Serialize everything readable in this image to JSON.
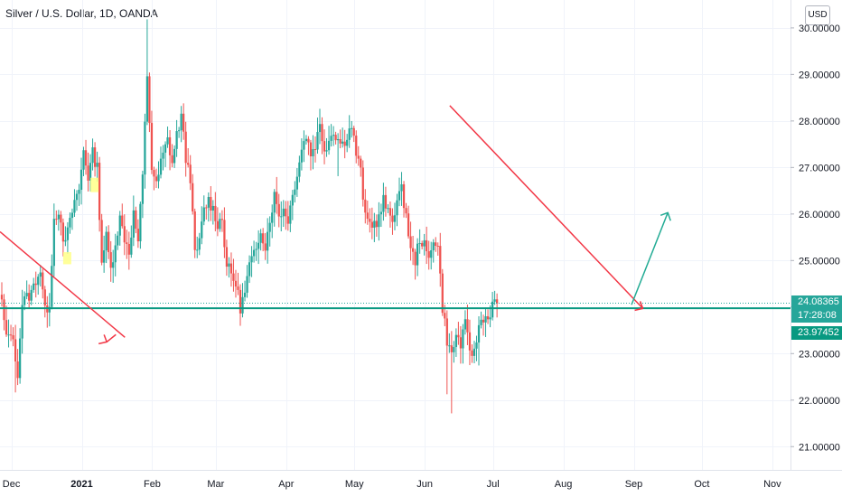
{
  "chart_data": {
    "type": "candlestick",
    "title": "Silver / U.S. Dollar, 1D, OANDA",
    "currency": "USD",
    "y_ticks": [
      21,
      22,
      23,
      24,
      25,
      26,
      27,
      28,
      29,
      30
    ],
    "y_tick_labels": [
      "21.00000",
      "22.00000",
      "23.00000",
      "24.00000",
      "25.00000",
      "26.00000",
      "27.00000",
      "28.00000",
      "29.00000",
      "30.00000"
    ],
    "ylim": [
      20.5,
      30.6
    ],
    "x_range_days": [
      0,
      348
    ],
    "x_ticks": [
      {
        "label": "Dec",
        "day": 5,
        "bold": false
      },
      {
        "label": "2021",
        "day": 36,
        "bold": true
      },
      {
        "label": "Feb",
        "day": 67,
        "bold": false
      },
      {
        "label": "Mar",
        "day": 95,
        "bold": false
      },
      {
        "label": "Apr",
        "day": 126,
        "bold": false
      },
      {
        "label": "May",
        "day": 156,
        "bold": false
      },
      {
        "label": "Jun",
        "day": 187,
        "bold": false
      },
      {
        "label": "Jul",
        "day": 217,
        "bold": false
      },
      {
        "label": "Aug",
        "day": 248,
        "bold": false
      },
      {
        "label": "Sep",
        "day": 279,
        "bold": false
      },
      {
        "label": "Oct",
        "day": 309,
        "bold": false
      },
      {
        "label": "Nov",
        "day": 340,
        "bold": false
      }
    ],
    "last_price": "24.08365",
    "countdown": "17:28:08",
    "support_price": "23.97452",
    "colors": {
      "up": "#26a69a",
      "down": "#ef5350",
      "support": "#089981",
      "trend": "#f23645",
      "projection": "#22ab94"
    },
    "support_line": {
      "price": 23.97452
    },
    "trendlines": [
      {
        "color": "red",
        "start": {
          "day": 0,
          "price": 25.62
        },
        "end": {
          "day": 55,
          "price": 23.35
        },
        "arrow": {
          "day": 47,
          "price": 23.25,
          "direction": "down-right"
        }
      },
      {
        "color": "red",
        "start": {
          "day": 198,
          "price": 28.33
        },
        "end": {
          "day": 283,
          "price": 23.97
        },
        "arrow": {
          "day": 283,
          "price": 23.97,
          "direction": "down-right"
        }
      },
      {
        "color": "green",
        "start": {
          "day": 278,
          "price": 24.05
        },
        "end": {
          "day": 294,
          "price": 26.03
        },
        "arrow": {
          "day": 294,
          "price": 26.03,
          "direction": "up-right"
        }
      }
    ],
    "highlights": [
      {
        "day": 29,
        "price_low": 24.92,
        "price_high": 25.18,
        "color": "#ffff88"
      },
      {
        "day": 41,
        "price_low": 26.47,
        "price_high": 26.78,
        "color": "#ffff88"
      }
    ],
    "waypoints": [
      [
        0,
        24.1
      ],
      [
        2,
        23.3
      ],
      [
        4,
        23.5
      ],
      [
        6,
        22.9
      ],
      [
        7,
        22.6
      ],
      [
        9,
        24.1
      ],
      [
        11,
        24.2
      ],
      [
        13,
        24.3
      ],
      [
        15,
        24.6
      ],
      [
        17,
        24.8
      ],
      [
        19,
        23.9
      ],
      [
        21,
        24.1
      ],
      [
        23,
        25.9
      ],
      [
        25,
        26.1
      ],
      [
        27,
        25.3
      ],
      [
        30,
        25.8
      ],
      [
        32,
        26.3
      ],
      [
        34,
        26.5
      ],
      [
        36,
        27.4
      ],
      [
        38,
        26.8
      ],
      [
        40,
        27.3
      ],
      [
        42,
        27.0
      ],
      [
        44,
        25.0
      ],
      [
        46,
        25.5
      ],
      [
        48,
        24.8
      ],
      [
        50,
        25.4
      ],
      [
        52,
        25.9
      ],
      [
        54,
        25.5
      ],
      [
        56,
        25.2
      ],
      [
        58,
        26.0
      ],
      [
        60,
        25.4
      ],
      [
        62,
        26.8
      ],
      [
        64,
        29.0
      ],
      [
        66,
        27.0
      ],
      [
        68,
        26.6
      ],
      [
        70,
        27.1
      ],
      [
        73,
        27.6
      ],
      [
        75,
        27.1
      ],
      [
        77,
        27.7
      ],
      [
        79,
        28.1
      ],
      [
        81,
        27.2
      ],
      [
        83,
        26.8
      ],
      [
        85,
        25.1
      ],
      [
        87,
        25.4
      ],
      [
        89,
        26.1
      ],
      [
        91,
        26.3
      ],
      [
        93,
        26.1
      ],
      [
        95,
        25.8
      ],
      [
        97,
        25.9
      ],
      [
        99,
        24.9
      ],
      [
        101,
        24.7
      ],
      [
        103,
        24.5
      ],
      [
        105,
        24.0
      ],
      [
        107,
        24.3
      ],
      [
        109,
        24.9
      ],
      [
        112,
        25.2
      ],
      [
        114,
        25.7
      ],
      [
        116,
        25.3
      ],
      [
        118,
        25.9
      ],
      [
        120,
        26.4
      ],
      [
        122,
        26.0
      ],
      [
        124,
        26.1
      ],
      [
        126,
        25.9
      ],
      [
        128,
        26.4
      ],
      [
        130,
        26.9
      ],
      [
        132,
        27.4
      ],
      [
        134,
        27.7
      ],
      [
        136,
        27.3
      ],
      [
        138,
        27.5
      ],
      [
        140,
        27.9
      ],
      [
        142,
        27.4
      ],
      [
        144,
        27.6
      ],
      [
        146,
        27.8
      ],
      [
        148,
        27.6
      ],
      [
        150,
        27.5
      ],
      [
        152,
        27.7
      ],
      [
        154,
        27.9
      ],
      [
        156,
        27.3
      ],
      [
        158,
        26.9
      ],
      [
        160,
        25.9
      ],
      [
        162,
        25.8
      ],
      [
        164,
        25.8
      ],
      [
        166,
        25.9
      ],
      [
        168,
        26.3
      ],
      [
        170,
        26.0
      ],
      [
        172,
        25.9
      ],
      [
        174,
        26.3
      ],
      [
        176,
        26.5
      ],
      [
        178,
        26.0
      ],
      [
        180,
        25.2
      ],
      [
        182,
        25.0
      ],
      [
        184,
        25.5
      ],
      [
        186,
        25.3
      ],
      [
        188,
        25.0
      ],
      [
        190,
        25.5
      ],
      [
        192,
        25.3
      ],
      [
        194,
        24.0
      ],
      [
        196,
        23.3
      ],
      [
        198,
        22.95
      ],
      [
        200,
        23.4
      ],
      [
        202,
        23.2
      ],
      [
        204,
        23.6
      ],
      [
        206,
        23.1
      ],
      [
        208,
        23.0
      ],
      [
        210,
        23.6
      ],
      [
        212,
        23.8
      ],
      [
        214,
        23.75
      ],
      [
        216,
        24.05
      ],
      [
        218,
        24.08
      ]
    ]
  }
}
